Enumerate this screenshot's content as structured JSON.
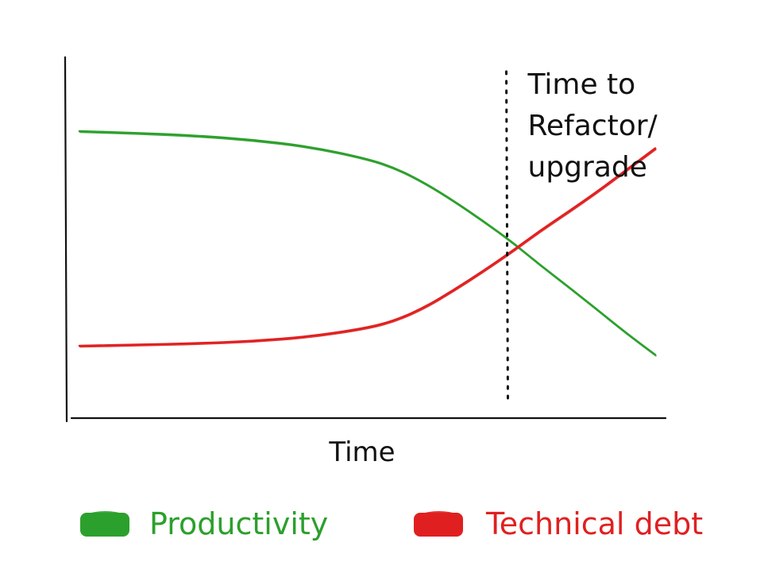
{
  "chart_data": {
    "type": "line",
    "title": "",
    "xlabel": "Time",
    "ylabel": "",
    "xlim": [
      0,
      100
    ],
    "ylim": [
      0,
      100
    ],
    "grid": false,
    "legend_position": "bottom",
    "x": [
      0,
      10,
      20,
      30,
      40,
      50,
      55,
      60,
      65,
      70,
      75,
      80,
      85,
      90,
      95,
      100
    ],
    "series": [
      {
        "name": "Productivity",
        "color": "#2ca02c",
        "values": [
          80,
          79.5,
          78.8,
          77.6,
          75.7,
          72.3,
          69.6,
          65.5,
          60.5,
          55,
          49.2,
          42.6,
          36.4,
          30,
          23.5,
          17.5
        ]
      },
      {
        "name": "Technical debt",
        "color": "#e02020",
        "values": [
          20,
          20.3,
          20.7,
          21.3,
          22.6,
          25,
          27.2,
          30.8,
          35.6,
          40.8,
          46.3,
          52.2,
          57.6,
          63.2,
          69.2,
          75.2
        ]
      }
    ],
    "annotations": [
      {
        "x": 74,
        "lines": [
          "Time to",
          "Refactor/",
          "upgrade"
        ]
      }
    ]
  }
}
